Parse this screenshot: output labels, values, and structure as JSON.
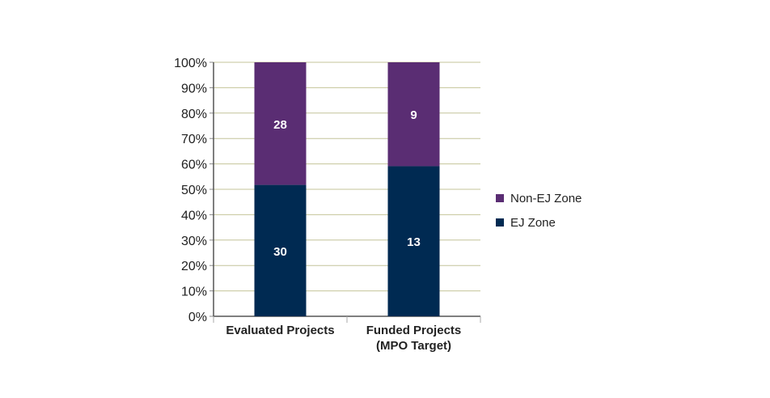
{
  "chart_data": {
    "type": "bar",
    "stacked": true,
    "percent_stacked": true,
    "categories": [
      [
        "Evaluated Projects"
      ],
      [
        "Funded Projects",
        "(MPO Target)"
      ]
    ],
    "series": [
      {
        "name": "EJ Zone",
        "values": [
          30,
          13
        ],
        "color": "#002a52"
      },
      {
        "name": "Non-EJ Zone",
        "values": [
          28,
          9
        ],
        "color": "#5a2d73"
      }
    ],
    "ylim": [
      0,
      100
    ],
    "yticks": [
      "0%",
      "10%",
      "20%",
      "30%",
      "40%",
      "50%",
      "60%",
      "70%",
      "80%",
      "90%",
      "100%"
    ],
    "grid": true,
    "grid_color": "#c4c49a",
    "legend_position": "right",
    "legend": [
      "Non-EJ Zone",
      "EJ Zone"
    ]
  }
}
